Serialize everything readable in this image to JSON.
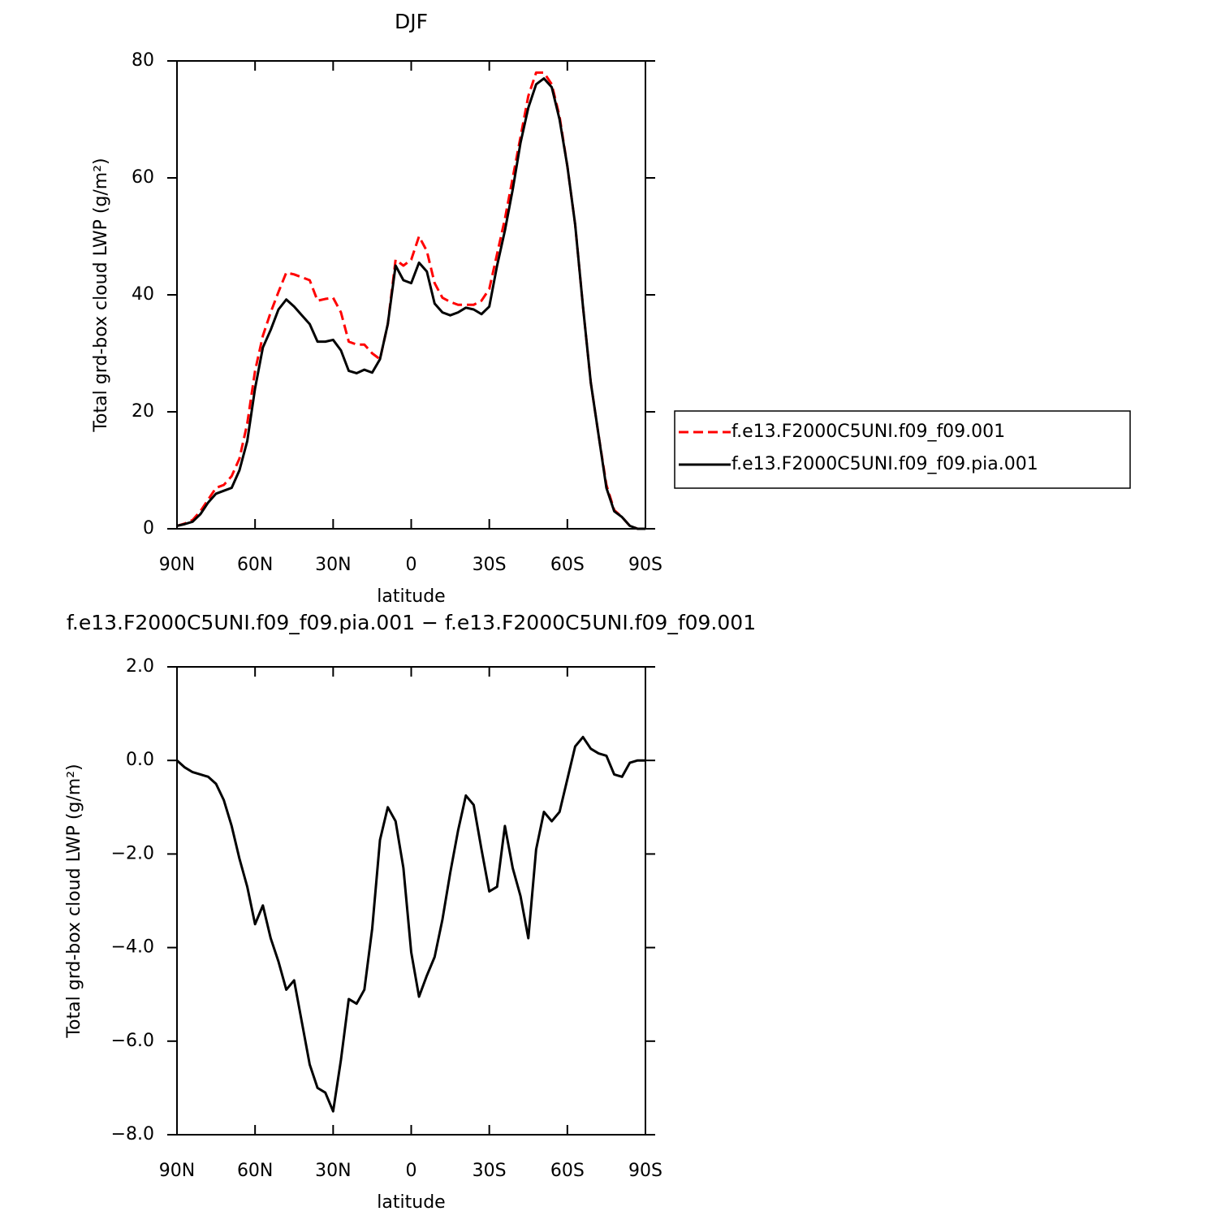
{
  "chart_data": [
    {
      "type": "line",
      "title": "DJF",
      "xlabel": "latitude",
      "ylabel": "Total grd-box cloud LWP (g/m²)",
      "x": [
        90,
        87,
        84,
        81,
        78,
        75,
        72,
        69,
        66,
        63,
        60,
        57,
        54,
        51,
        48,
        45,
        42,
        39,
        36,
        33,
        30,
        27,
        24,
        21,
        18,
        15,
        12,
        9,
        6,
        3,
        0,
        -3,
        -6,
        -9,
        -12,
        -15,
        -18,
        -21,
        -24,
        -27,
        -30,
        -33,
        -36,
        -39,
        -42,
        -45,
        -48,
        -51,
        -54,
        -57,
        -60,
        -63,
        -66,
        -69,
        -72,
        -75,
        -78,
        -81,
        -84,
        -87,
        -90
      ],
      "series": [
        {
          "name": "f.e13.F2000C5UNI.f09_f09.001",
          "color": "#ff0000",
          "linestyle": "dashed",
          "values": [
            0.5,
            0.9,
            1.5,
            3,
            5,
            7,
            7.5,
            9,
            12,
            18,
            27,
            33,
            37,
            40.5,
            43.8,
            43.5,
            43,
            42.5,
            39,
            39.3,
            39.5,
            37,
            32,
            31.5,
            31.5,
            30,
            29,
            35,
            46,
            45,
            46,
            50,
            47.5,
            42,
            39.5,
            38.8,
            38.3,
            38.3,
            38.3,
            39,
            41,
            47,
            53,
            60,
            67,
            74,
            78,
            78,
            76,
            70.5,
            62,
            52,
            38,
            25,
            16,
            7.5,
            3.2,
            2,
            0.5,
            0,
            0
          ]
        },
        {
          "name": "f.e13.F2000C5UNI.f09_f09.pia.001",
          "color": "#000000",
          "linestyle": "solid",
          "values": [
            0.5,
            0.8,
            1.2,
            2.5,
            4.5,
            6,
            6.5,
            7,
            10,
            15,
            24,
            31,
            34,
            37.5,
            39.2,
            38,
            36.5,
            35,
            32,
            32,
            32.3,
            30.5,
            27,
            26.6,
            27.2,
            26.7,
            29,
            35,
            45,
            42.5,
            42,
            45.5,
            44,
            38.5,
            37,
            36.5,
            37,
            37.8,
            37.5,
            36.7,
            38,
            45,
            51,
            58,
            66,
            72,
            76,
            77,
            75.5,
            70,
            62,
            52,
            38,
            25,
            16,
            7,
            3,
            2,
            0.5,
            0,
            0
          ]
        }
      ],
      "xlim": [
        90,
        -90
      ],
      "xticks": [
        {
          "value": 90,
          "label": "90N"
        },
        {
          "value": 60,
          "label": "60N"
        },
        {
          "value": 30,
          "label": "30N"
        },
        0,
        {
          "value": -30,
          "label": "30S"
        },
        {
          "value": -60,
          "label": "60S"
        },
        {
          "value": -90,
          "label": "90S"
        }
      ],
      "ylim": [
        0,
        80
      ],
      "yticks": [
        0,
        20,
        40,
        60,
        80
      ],
      "legend": "right"
    },
    {
      "type": "line",
      "title": "f.e13.F2000C5UNI.f09_f09.pia.001 − f.e13.F2000C5UNI.f09_f09.001",
      "xlabel": "latitude",
      "ylabel": "Total grd-box cloud LWP (g/m²)",
      "x": [
        90,
        87,
        84,
        81,
        78,
        75,
        72,
        69,
        66,
        63,
        60,
        57,
        54,
        51,
        48,
        45,
        42,
        39,
        36,
        33,
        30,
        27,
        24,
        21,
        18,
        15,
        12,
        9,
        6,
        3,
        0,
        -3,
        -6,
        -9,
        -12,
        -15,
        -18,
        -21,
        -24,
        -27,
        -30,
        -33,
        -36,
        -39,
        -42,
        -45,
        -48,
        -51,
        -54,
        -57,
        -60,
        -63,
        -66,
        -69,
        -72,
        -75,
        -78,
        -81,
        -84,
        -87,
        -90
      ],
      "series": [
        {
          "color": "#000000",
          "linestyle": "solid",
          "values": [
            0,
            -0.15,
            -0.25,
            -0.3,
            -0.35,
            -0.5,
            -0.85,
            -1.4,
            -2.1,
            -2.7,
            -3.5,
            -3.1,
            -3.8,
            -4.3,
            -4.9,
            -4.7,
            -5.6,
            -6.5,
            -7,
            -7.1,
            -7.5,
            -6.4,
            -5.1,
            -5.2,
            -4.9,
            -3.6,
            -1.7,
            -1,
            -1.3,
            -2.3,
            -4.1,
            -5.05,
            -4.6,
            -4.2,
            -3.4,
            -2.4,
            -1.5,
            -0.75,
            -0.95,
            -1.9,
            -2.8,
            -2.7,
            -1.4,
            -2.3,
            -2.9,
            -3.8,
            -1.9,
            -1.1,
            -1.3,
            -1.1,
            -0.4,
            0.3,
            0.5,
            0.25,
            0.15,
            0.1,
            -0.3,
            -0.35,
            -0.05,
            0,
            0
          ]
        }
      ],
      "xlim": [
        90,
        -90
      ],
      "xticks": [
        {
          "value": 90,
          "label": "90N"
        },
        {
          "value": 60,
          "label": "60N"
        },
        {
          "value": 30,
          "label": "30N"
        },
        0,
        {
          "value": -30,
          "label": "30S"
        },
        {
          "value": -60,
          "label": "60S"
        },
        {
          "value": -90,
          "label": "90S"
        }
      ],
      "ylim": [
        -8,
        2
      ],
      "yticks": [
        {
          "value": -8,
          "label": "−8.0"
        },
        {
          "value": -6,
          "label": "−6.0"
        },
        {
          "value": -4,
          "label": "−4.0"
        },
        {
          "value": -2,
          "label": "−2.0"
        },
        {
          "value": 0,
          "label": "0.0"
        },
        {
          "value": 2,
          "label": "2.0"
        }
      ]
    }
  ]
}
